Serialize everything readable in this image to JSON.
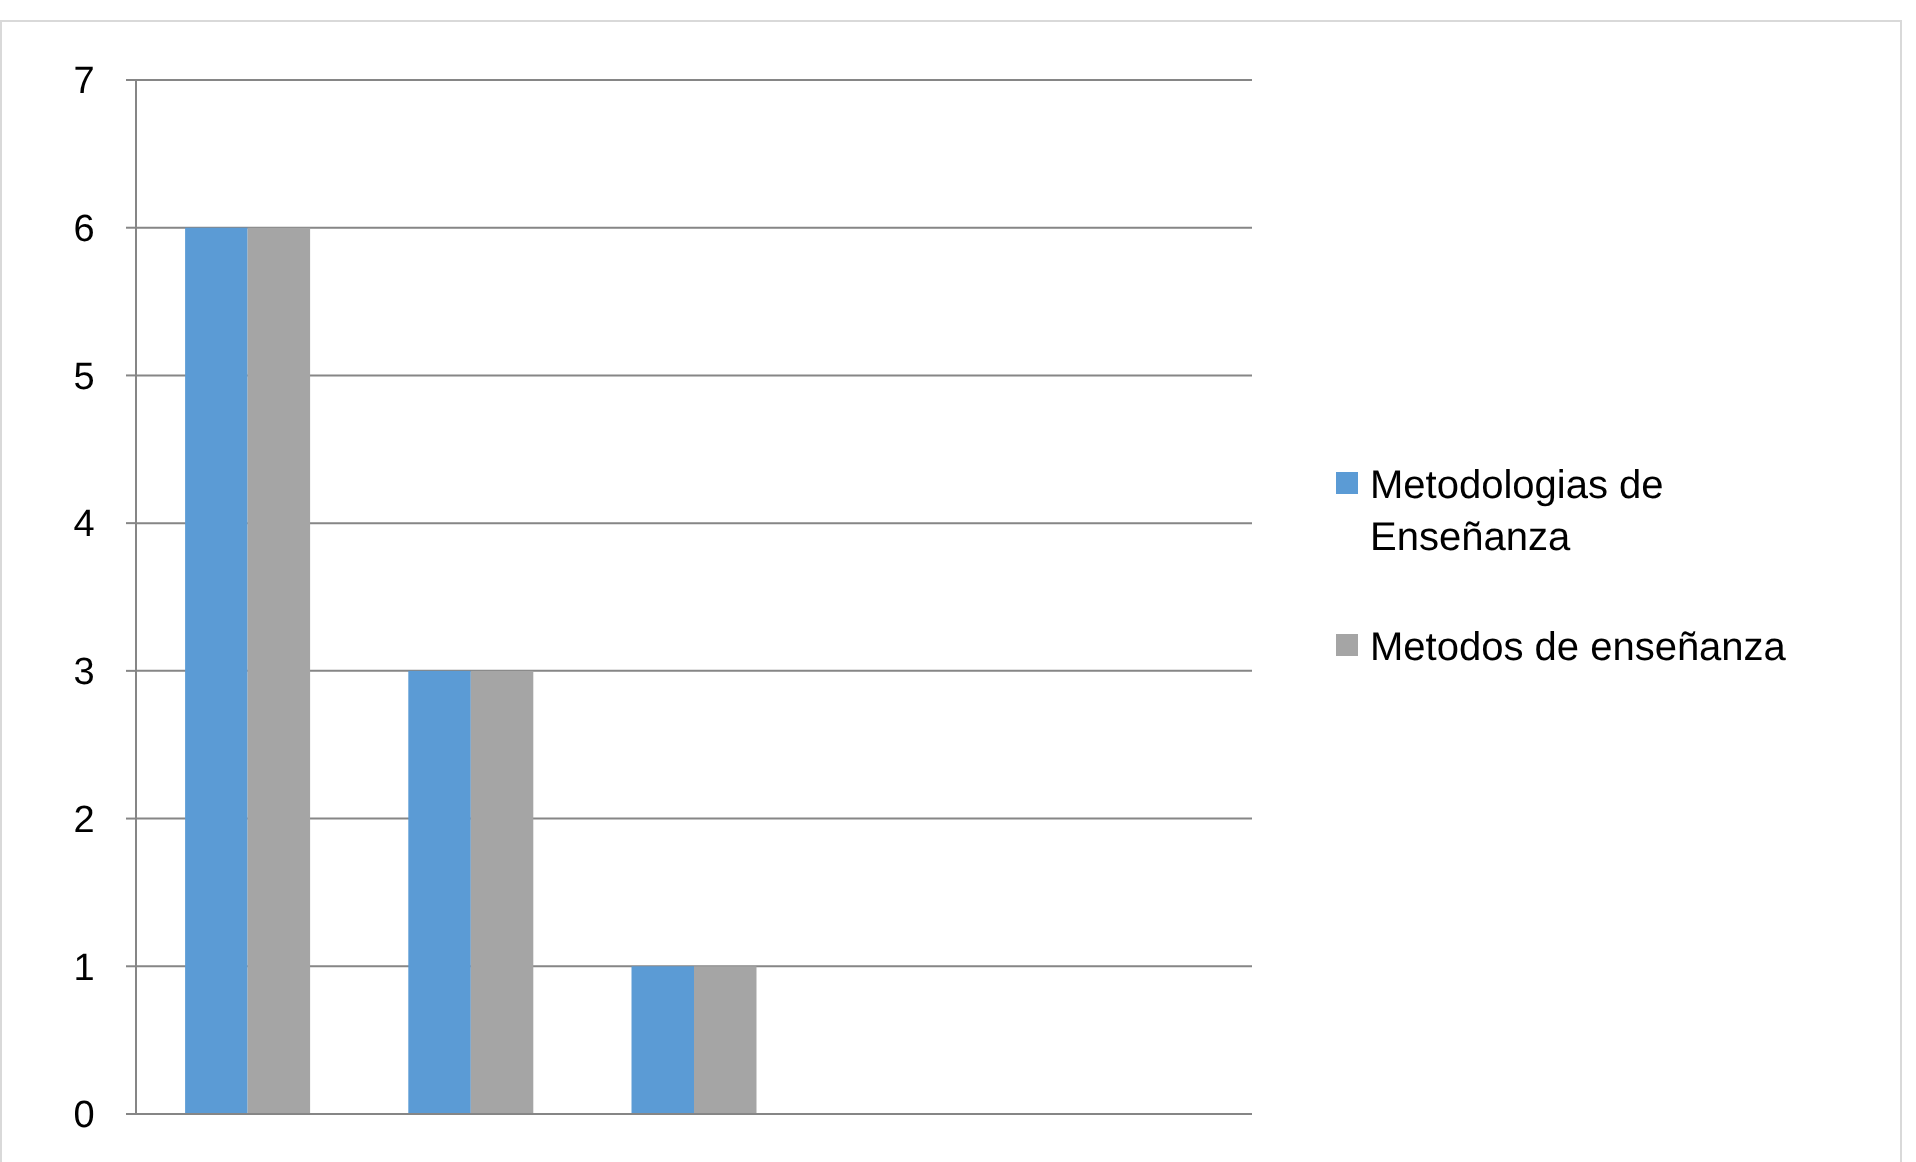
{
  "chart_data": {
    "type": "bar",
    "categories": [
      null,
      null,
      null,
      null,
      null
    ],
    "series": [
      {
        "name": "Metodologias de Enseñanza",
        "color": "#5b9bd5",
        "values": [
          6,
          3,
          1,
          0,
          0
        ]
      },
      {
        "name": "Metodos de enseñanza",
        "color": "#a5a5a5",
        "values": [
          6,
          3,
          1,
          0,
          0
        ]
      }
    ],
    "ylim": [
      0,
      7
    ],
    "yticks": [
      0,
      1,
      2,
      3,
      4,
      5,
      6,
      7
    ],
    "grid": "y",
    "legend": "right"
  }
}
